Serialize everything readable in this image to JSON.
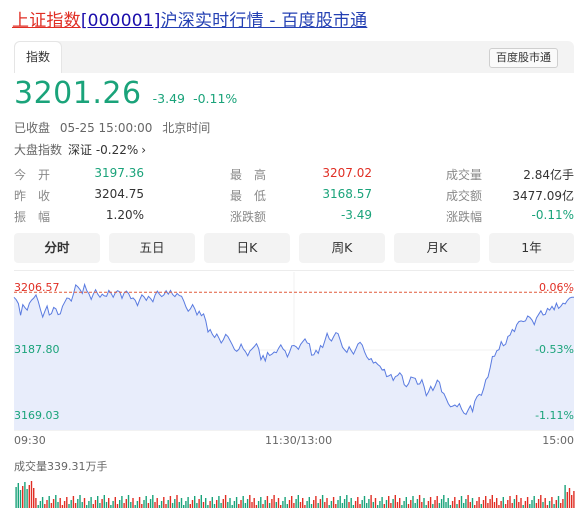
{
  "title": {
    "part1": "上证指数",
    "part2": "[000001]",
    "part3": "沪深实时行情 - 百度股市通"
  },
  "tabs": {
    "active": "指数",
    "brand": "百度股市通"
  },
  "quote": {
    "price": "3201.26",
    "change": "-3.49",
    "change_pct": "-0.11%"
  },
  "status": {
    "state": "已收盘",
    "datetime": "05-25 15:00:00",
    "tz": "北京时间"
  },
  "market": {
    "label": "大盘指数",
    "value": "深证 -0.22%",
    "arrow": "›"
  },
  "stats": [
    {
      "label": "今　开",
      "value": "3197.36",
      "color": "green"
    },
    {
      "label": "最　高",
      "value": "3207.02",
      "color": "red"
    },
    {
      "label": "成交量",
      "value": "2.84亿手",
      "color": "dark"
    },
    {
      "label": "昨　收",
      "value": "3204.75",
      "color": "dark"
    },
    {
      "label": "最　低",
      "value": "3168.57",
      "color": "green"
    },
    {
      "label": "成交额",
      "value": "3477.09亿",
      "color": "dark"
    },
    {
      "label": "振　幅",
      "value": "1.20%",
      "color": "dark"
    },
    {
      "label": "涨跌额",
      "value": "-3.49",
      "color": "green"
    },
    {
      "label": "涨跌幅",
      "value": "-0.11%",
      "color": "green"
    }
  ],
  "periods": [
    "分时",
    "五日",
    "日K",
    "周K",
    "月K",
    "1年"
  ],
  "colors": {
    "up": "#e02e24",
    "down": "#1aa37a",
    "line": "#5a7be0",
    "fill": "#e8edfb"
  },
  "chart_data": {
    "type": "area",
    "title": "",
    "y_left_ticks": [
      "3206.57",
      "3187.80",
      "3169.03"
    ],
    "y_right_ticks": [
      "0.06%",
      "-0.53%",
      "-1.11%"
    ],
    "ylim": [
      3169.03,
      3206.57
    ],
    "prev_close": 3204.75,
    "x_ticks": [
      "09:30",
      "11:30/13:00",
      "15:00"
    ],
    "volume_label": "成交量339.31万手",
    "series": [
      {
        "values": [
          3203.3,
          3202.6,
          3201.5,
          3198.1,
          3201.2,
          3200.3,
          3199.6,
          3201.6,
          3202.5,
          3203.1,
          3204.0,
          3202.1,
          3199.7,
          3197.6,
          3199.3,
          3200.8,
          3198.2,
          3198.6,
          3200.4,
          3200.0,
          3198.3,
          3198.5,
          3200.7,
          3201.9,
          3203.1,
          3203.0,
          3202.2,
          3204.3,
          3206.9,
          3206.3,
          3205.5,
          3204.4,
          3207.0,
          3205.2,
          3204.3,
          3202.7,
          3204.3,
          3205.5,
          3204.2,
          3203.3,
          3204.2,
          3203.7,
          3203.6,
          3205.3,
          3204.5,
          3203.3,
          3204.7,
          3205.2,
          3204.9,
          3203.0,
          3204.6,
          3205.1,
          3204.4,
          3202.9,
          3203.1,
          3202.4,
          3200.9,
          3202.6,
          3204.0,
          3203.4,
          3202.4,
          3203.6,
          3202.9,
          3202.0,
          3204.0,
          3205.1,
          3204.2,
          3203.5,
          3204.0,
          3205.2,
          3204.2,
          3205.3,
          3204.1,
          3203.5,
          3204.4,
          3203.8,
          3203.6,
          3202.2,
          3200.5,
          3199.3,
          3200.0,
          3201.2,
          3200.0,
          3198.2,
          3199.3,
          3198.0,
          3198.5,
          3196.5,
          3193.3,
          3194.0,
          3192.6,
          3191.7,
          3192.7,
          3191.5,
          3190.1,
          3191.1,
          3192.6,
          3192.0,
          3190.8,
          3189.6,
          3188.2,
          3187.7,
          3188.3,
          3189.8,
          3188.4,
          3187.6,
          3186.4,
          3187.8,
          3188.4,
          3189.1,
          3189.9,
          3188.5,
          3185.3,
          3186.5,
          3184.9,
          3187.4,
          3186.5,
          3186.9,
          3187.5,
          3187.3,
          3188.6,
          3189.6,
          3188.4,
          3187.8,
          3186.1,
          3187.5,
          3189.3,
          3189.4,
          3189.0,
          3188.3,
          3189.7,
          3190.5,
          3191.3,
          3190.1,
          3189.9,
          3186.6,
          3186.7,
          3188.0,
          3187.1,
          3189.4,
          3188.8,
          3190.8,
          3192.9,
          3191.3,
          3190.7,
          3192.0,
          3193.1,
          3192.8,
          3190.9,
          3188.9,
          3188.1,
          3187.4,
          3189.0,
          3187.9,
          3186.9,
          3188.3,
          3189.8,
          3190.3,
          3189.5,
          3187.5,
          3186.1,
          3185.3,
          3185.6,
          3184.3,
          3184.6,
          3183.9,
          3183.4,
          3182.3,
          3182.5,
          3180.4,
          3180.6,
          3181.0,
          3179.3,
          3180.4,
          3180.7,
          3181.5,
          3180.7,
          3178.1,
          3177.5,
          3178.4,
          3180.3,
          3180.1,
          3179.9,
          3178.2,
          3178.3,
          3179.5,
          3177.5,
          3174.9,
          3176.0,
          3177.6,
          3176.4,
          3177.7,
          3179.4,
          3178.8,
          3176.0,
          3175.5,
          3174.1,
          3172.6,
          3171.7,
          3171.9,
          3172.2,
          3171.7,
          3172.6,
          3171.0,
          3169.9,
          3169.5,
          3170.8,
          3172.0,
          3170.3,
          3173.3,
          3174.6,
          3175.3,
          3175.0,
          3176.9,
          3179.5,
          3180.3,
          3183.0,
          3186.2,
          3186.3,
          3187.9,
          3188.2,
          3190.5,
          3189.3,
          3189.8,
          3192.0,
          3192.4,
          3194.0,
          3193.4,
          3195.4,
          3196.3,
          3196.5,
          3196.3,
          3196.5,
          3197.9,
          3197.5,
          3196.7,
          3195.4,
          3197.4,
          3198.4,
          3199.4,
          3198.2,
          3198.4,
          3200.1,
          3199.6,
          3200.7,
          3199.7,
          3201.6,
          3200.1,
          3200.7,
          3201.6,
          3201.4,
          3202.4,
          3203.1,
          3203.3,
          3203.3
        ]
      }
    ]
  }
}
